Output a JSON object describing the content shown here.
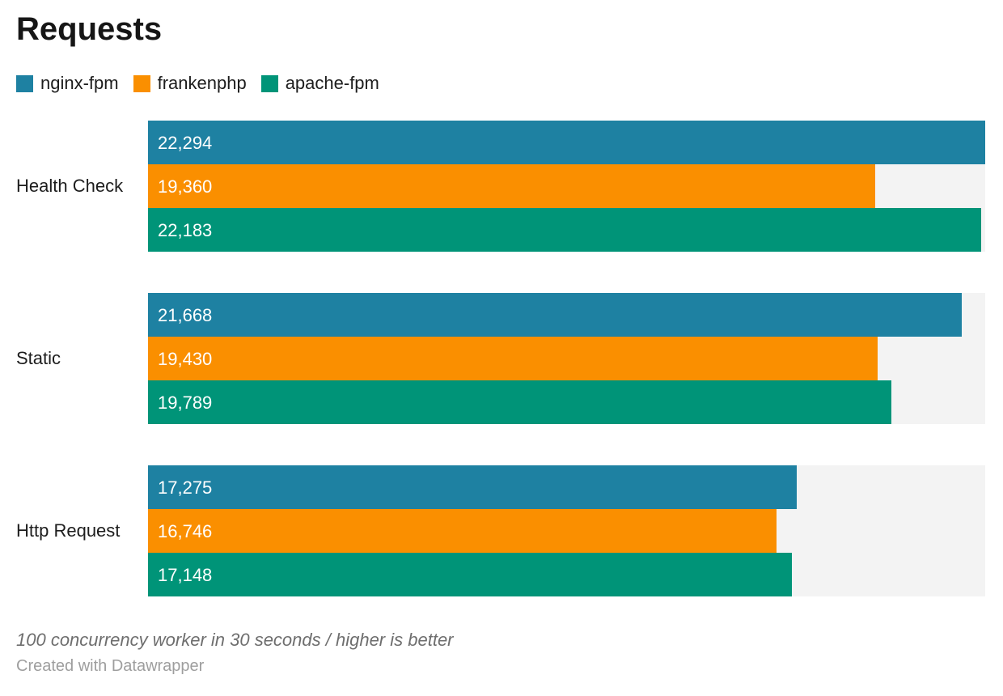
{
  "title": "Requests",
  "chart_data": {
    "type": "bar",
    "orientation": "horizontal",
    "title": "Requests",
    "categories": [
      "Health Check",
      "Static",
      "Http Request"
    ],
    "series": [
      {
        "name": "nginx-fpm",
        "color": "#1e81a2",
        "values": [
          22294,
          21668,
          17275
        ]
      },
      {
        "name": "frankenphp",
        "color": "#fa8f00",
        "values": [
          19360,
          19430,
          16746
        ]
      },
      {
        "name": "apache-fpm",
        "color": "#009478",
        "values": [
          22183,
          19789,
          17148
        ]
      }
    ],
    "value_labels": [
      [
        "22,294",
        "21,668",
        "17,275"
      ],
      [
        "19,360",
        "19,430",
        "16,746"
      ],
      [
        "22,183",
        "19,789",
        "17,148"
      ]
    ],
    "xmin": 0,
    "xmax": 22294,
    "legend_position": "top",
    "grid": false,
    "track_color": "#f3f3f3",
    "value_labels_inside_bars": true
  },
  "footer": {
    "note": "100 concurrency worker in 30 seconds / higher is better",
    "byline": "Created with Datawrapper"
  }
}
